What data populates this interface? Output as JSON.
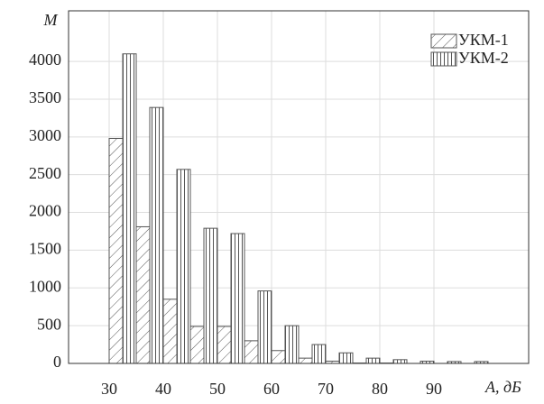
{
  "chart_data": {
    "type": "bar",
    "y_label": "M",
    "x_label": "A, дБ",
    "x": [
      30,
      35,
      40,
      45,
      50,
      55,
      60,
      65,
      70,
      75,
      80,
      85,
      90,
      95
    ],
    "series": [
      {
        "name": "УКМ-1",
        "color": "#555",
        "pattern": "diagonal",
        "values": [
          2980,
          1810,
          850,
          490,
          490,
          300,
          170,
          70,
          30,
          5,
          5,
          0,
          0,
          0
        ]
      },
      {
        "name": "УКМ-2",
        "color": "#555",
        "pattern": "vertical",
        "values": [
          4100,
          3390,
          2570,
          1790,
          1720,
          960,
          500,
          250,
          140,
          70,
          50,
          30,
          25,
          25
        ]
      }
    ],
    "xlim": [
      22.5,
      107.5
    ],
    "xticks": [
      30,
      40,
      50,
      60,
      70,
      80,
      90
    ],
    "ylim": [
      0,
      4670
    ],
    "yticks": [
      0,
      500,
      1000,
      1500,
      2000,
      2500,
      3000,
      3500,
      4000
    ],
    "grid": true,
    "legend": "top-right"
  }
}
